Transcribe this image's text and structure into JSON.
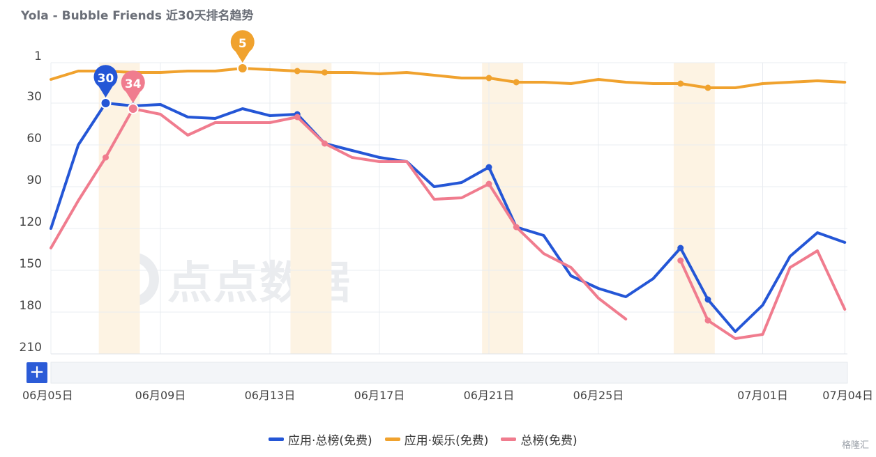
{
  "title": "Yola - Bubble Friends 近30天排名趋势",
  "watermark": "点点数据",
  "corner_mark": "格隆汇",
  "add_label": "+",
  "chart_data": {
    "type": "line",
    "title": "Yola - Bubble Friends 近30天排名趋势",
    "y_inverted": true,
    "ylim": [
      1,
      210
    ],
    "y_ticks": [
      1,
      30,
      60,
      90,
      120,
      150,
      180,
      210
    ],
    "x_tick_labels": [
      "06月05日",
      "06月09日",
      "06月13日",
      "06月17日",
      "06月21日",
      "06月25日",
      "07月01日",
      "07月04日"
    ],
    "x_tick_index": [
      0,
      4,
      8,
      12,
      16,
      20,
      26,
      29
    ],
    "x": [
      "06-05",
      "06-06",
      "06-07",
      "06-08",
      "06-09",
      "06-10",
      "06-11",
      "06-12",
      "06-13",
      "06-14",
      "06-15",
      "06-16",
      "06-17",
      "06-18",
      "06-19",
      "06-20",
      "06-21",
      "06-22",
      "06-23",
      "06-24",
      "06-25",
      "06-26",
      "06-27",
      "06-28",
      "06-29",
      "06-30",
      "07-01",
      "07-02",
      "07-03",
      "07-04"
    ],
    "weekend_bands": [
      [
        1.75,
        3.25
      ],
      [
        8.75,
        10.25
      ],
      [
        15.75,
        17.25
      ],
      [
        22.75,
        24.25
      ]
    ],
    "series": [
      {
        "name": "应用·总榜(免费)",
        "color": "#2456d6",
        "values": [
          120,
          60,
          30,
          32,
          31,
          40,
          41,
          34,
          39,
          38,
          59,
          64,
          69,
          72,
          90,
          87,
          76,
          119,
          125,
          154,
          163,
          169,
          156,
          134,
          171,
          194,
          175,
          140,
          123,
          130
        ],
        "markers": [
          2,
          3,
          9,
          16,
          23,
          24
        ],
        "badge": {
          "index": 2,
          "label": "30"
        }
      },
      {
        "name": "应用·娱乐(免费)",
        "color": "#f0a22e",
        "values": [
          13,
          7,
          7,
          8,
          8,
          7,
          7,
          5,
          6,
          7,
          8,
          8,
          9,
          8,
          10,
          12,
          12,
          15,
          15,
          16,
          13,
          15,
          16,
          16,
          19,
          19,
          16,
          15,
          14,
          15
        ],
        "markers": [
          7,
          9,
          10,
          16,
          17,
          23,
          24
        ],
        "badge": {
          "index": 7,
          "label": "5"
        }
      },
      {
        "name": "总榜(免费)",
        "color": "#f07c8e",
        "values": [
          134,
          100,
          69,
          34,
          38,
          53,
          44,
          44,
          44,
          40,
          59,
          69,
          72,
          72,
          99,
          98,
          88,
          119,
          138,
          148,
          170,
          185,
          null,
          143,
          186,
          199,
          196,
          148,
          136,
          178
        ],
        "markers": [
          2,
          3,
          9,
          10,
          16,
          17,
          23,
          24
        ],
        "badge": {
          "index": 3,
          "label": "34"
        }
      }
    ],
    "legend_position": "bottom-center"
  }
}
